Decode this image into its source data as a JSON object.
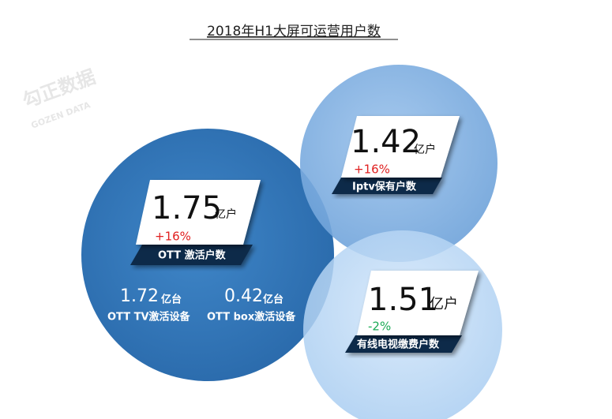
{
  "title": "2018年H1大屏可运营用户数",
  "watermark": {
    "brand": "勾正数据",
    "brand_en": "GOZEN DATA"
  },
  "ott": {
    "value": 1.75,
    "unit": "亿户",
    "change": "+16%",
    "label": "OTT 激活户数",
    "devices": [
      {
        "value": 1.72,
        "unit": "亿台",
        "label": "OTT TV激活设备"
      },
      {
        "value": 0.42,
        "unit": "亿台",
        "label": "OTT box激活设备"
      }
    ]
  },
  "iptv": {
    "value": 1.42,
    "unit": "亿户",
    "change": "+16%",
    "label": "Iptv保有户数"
  },
  "cable": {
    "value": 1.51,
    "unit": "亿户",
    "change": "-2%",
    "label": "有线电视缴费户数"
  }
}
